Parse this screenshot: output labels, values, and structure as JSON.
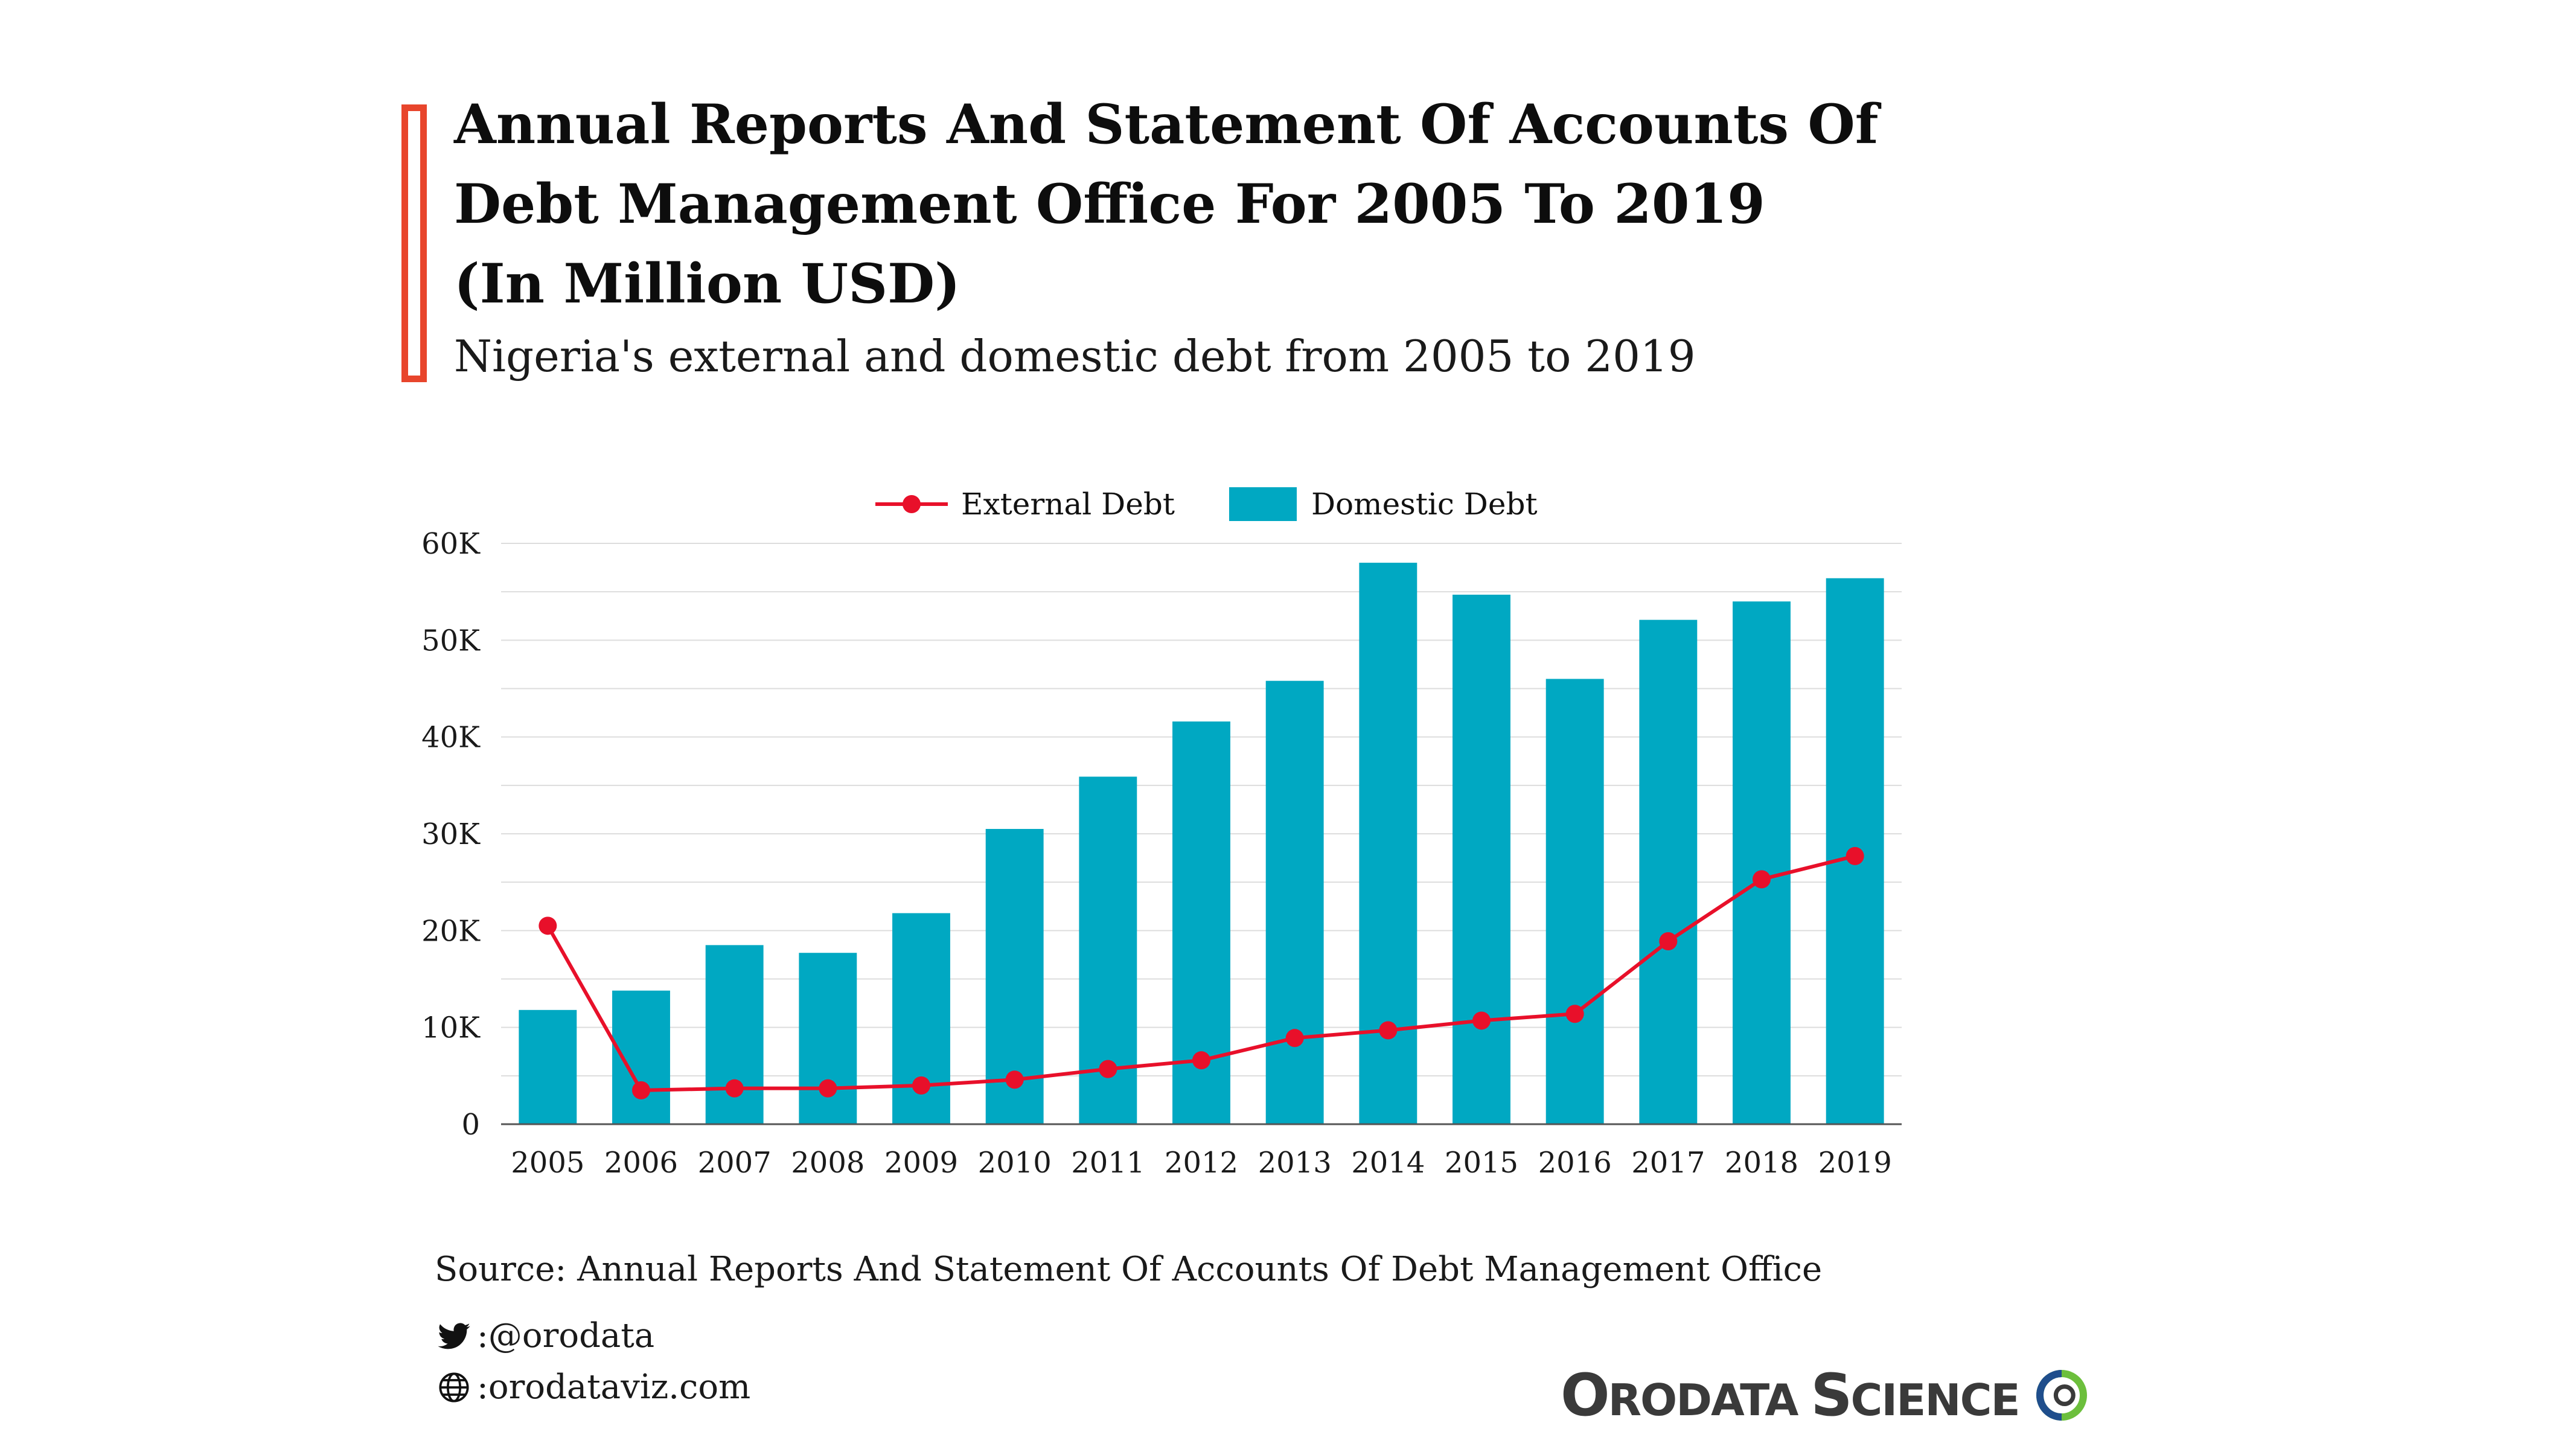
{
  "header": {
    "title_lines": [
      "Annual Reports And Statement Of Accounts Of",
      "Debt Management Office For 2005 To 2019",
      "(In Million USD)"
    ],
    "subtitle": "Nigeria's external and domestic debt from 2005 to 2019"
  },
  "legend": {
    "external": "External Debt",
    "domestic": "Domestic Debt"
  },
  "colors": {
    "external": "#e8102a",
    "domestic": "#00a8c2",
    "accent": "#e8452c",
    "grid": "#dddddd"
  },
  "chart_data": {
    "type": "bar",
    "categories": [
      "2005",
      "2006",
      "2007",
      "2008",
      "2009",
      "2010",
      "2011",
      "2012",
      "2013",
      "2014",
      "2015",
      "2016",
      "2017",
      "2018",
      "2019"
    ],
    "series": [
      {
        "name": "Domestic Debt",
        "type": "bar",
        "values": [
          11800,
          13800,
          18500,
          17700,
          21800,
          30500,
          35900,
          41600,
          45800,
          58000,
          54700,
          46000,
          52100,
          54000,
          56400
        ]
      },
      {
        "name": "External Debt",
        "type": "line",
        "values": [
          20500,
          3500,
          3700,
          3700,
          4000,
          4600,
          5700,
          6600,
          8900,
          9700,
          10700,
          11400,
          18900,
          25300,
          27700
        ]
      }
    ],
    "yticks": [
      "0",
      "10K",
      "20K",
      "30K",
      "40K",
      "50K",
      "60K"
    ],
    "ylim": [
      0,
      60000
    ],
    "grid": true,
    "legend_position": "top"
  },
  "footer": {
    "source": "Source: Annual Reports And Statement Of Accounts Of Debt Management Office",
    "twitter": ":@orodata",
    "website": ":orodataviz.com",
    "logo_first_initial": "O",
    "logo_first_rest": "RODATA",
    "logo_second_initial": "S",
    "logo_second_rest": "CIENCE",
    "twitter_icon": "twitter-bird-icon",
    "web_icon": "globe-icon"
  }
}
